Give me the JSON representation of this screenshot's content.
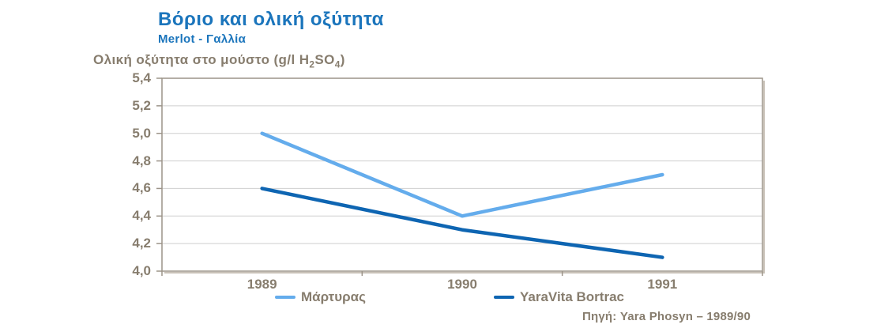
{
  "chart_data": {
    "type": "line",
    "title": "Βόριο και ολική οξύτητα",
    "subtitle": "Merlot - Γαλλία",
    "ylabel": "Ολική οξύτητα στο μούστο (g/l H₂SO₄)",
    "ylabel_parts": {
      "prefix": "Ολική οξύτητα στο μούστο (g/l H",
      "sub1": "2",
      "mid": "SO",
      "sub2": "4",
      "suffix": ")"
    },
    "xlabel": "",
    "categories": [
      "1989",
      "1990",
      "1991"
    ],
    "series": [
      {
        "name": "Μάρτυρας",
        "color": "#64ACEC",
        "values": [
          5.0,
          4.4,
          4.7
        ]
      },
      {
        "name": "YaraVita Bortrac",
        "color": "#0E65B2",
        "values": [
          4.6,
          4.3,
          4.1
        ]
      }
    ],
    "ylim": [
      4.0,
      5.4
    ],
    "ytick_values": [
      5.4,
      5.2,
      5.0,
      4.8,
      4.6,
      4.4,
      4.2,
      4.0
    ],
    "ytick_labels": [
      "5,4",
      "5,2",
      "5,0",
      "4,8",
      "4,6",
      "4,4",
      "4,2",
      "4,0"
    ],
    "grid": "horizontal",
    "legend_position": "bottom",
    "source": "Πηγή: Yara Phosyn – 1989/90"
  },
  "colors": {
    "title": "#1B75BC",
    "text": "#877D6E",
    "grid": "#CFCFCF",
    "frame": "#9C9489",
    "frame_shadow": "#C9C2B8"
  }
}
